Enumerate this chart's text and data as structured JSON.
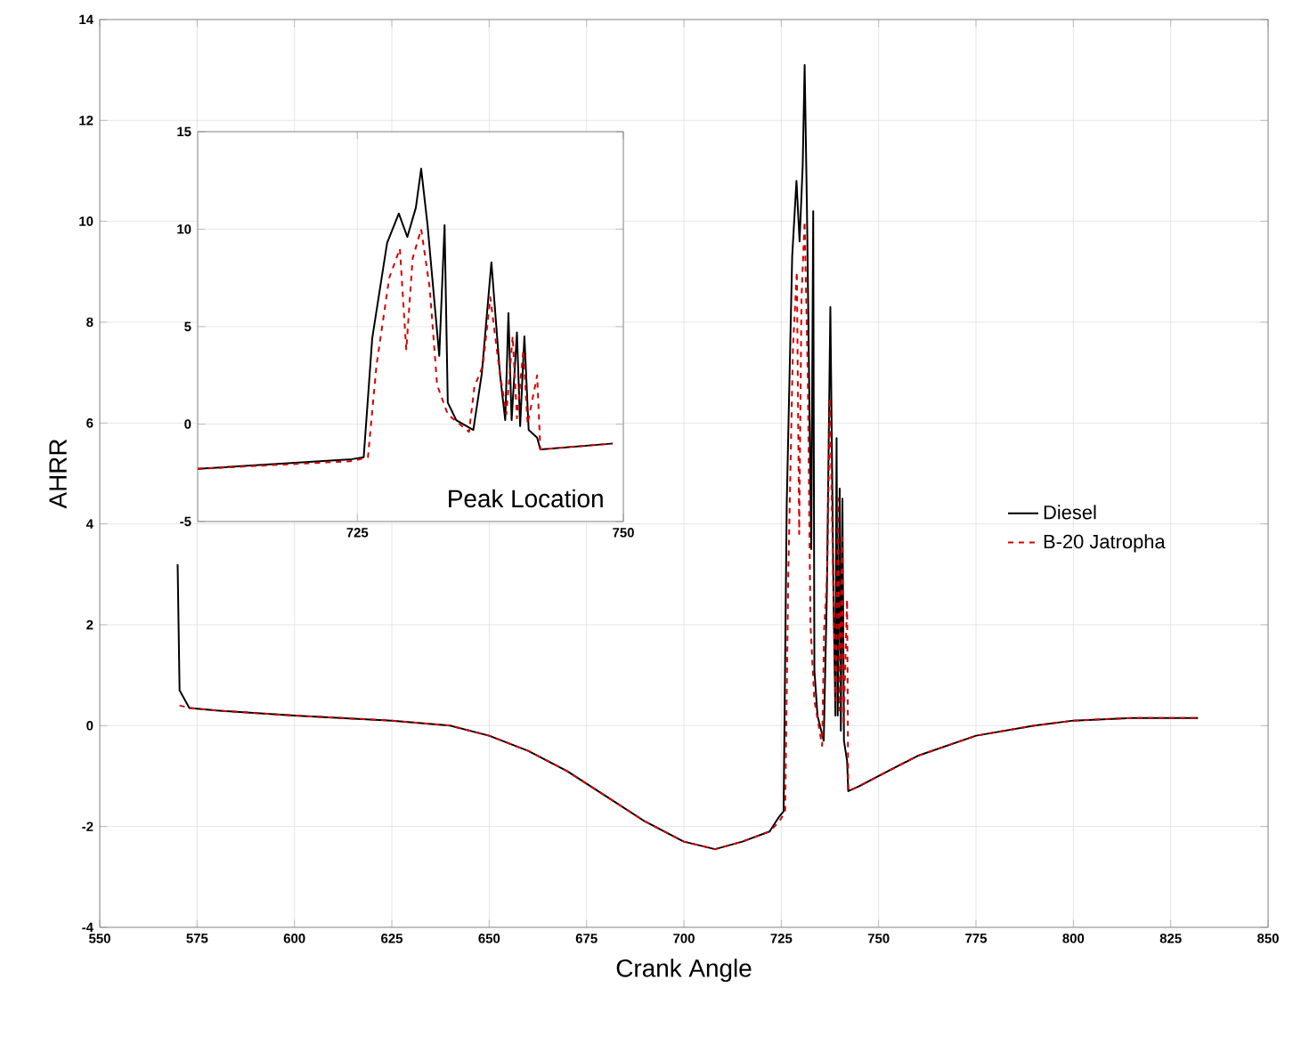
{
  "chart_data": [
    {
      "type": "line",
      "xlabel": "Crank Angle",
      "ylabel": "AHRR",
      "xlim": [
        550,
        850
      ],
      "ylim": [
        -4,
        14
      ],
      "xticks": [
        550,
        575,
        600,
        625,
        650,
        675,
        700,
        725,
        750,
        775,
        800,
        825,
        850
      ],
      "yticks": [
        -4,
        -2,
        0,
        2,
        4,
        6,
        8,
        10,
        12,
        14
      ],
      "grid": true,
      "legend": "right",
      "series": [
        {
          "name": "Diesel",
          "color": "#000000",
          "line_style": "solid",
          "x": [
            570,
            570.5,
            573,
            580,
            600,
            625,
            640,
            650,
            660,
            670,
            680,
            690,
            700,
            708,
            715,
            722,
            724.5,
            725.6,
            726.4,
            727.8,
            728.9,
            729.7,
            730.5,
            731.0,
            731.6,
            732.7,
            733.2,
            733.5,
            734.3,
            735.9,
            736.7,
            737.6,
            738.4,
            738.9,
            739.2,
            739.5,
            740.0,
            740.3,
            740.7,
            741.1,
            741.9,
            742.2,
            745,
            750,
            760,
            775,
            790,
            800,
            815,
            832
          ],
          "values": [
            3.2,
            0.7,
            0.35,
            0.3,
            0.2,
            0.1,
            0.0,
            -0.2,
            -0.5,
            -0.9,
            -1.4,
            -1.9,
            -2.3,
            -2.45,
            -2.3,
            -2.1,
            -1.8,
            -1.7,
            4.4,
            9.3,
            10.8,
            9.6,
            11.1,
            13.1,
            10.2,
            3.5,
            10.2,
            1.1,
            0.2,
            -0.3,
            2.6,
            8.3,
            2.6,
            0.2,
            5.7,
            0.2,
            4.7,
            -0.1,
            4.5,
            -0.3,
            -0.7,
            -1.3,
            -1.2,
            -1.0,
            -0.6,
            -0.2,
            0.0,
            0.1,
            0.15,
            0.15
          ]
        },
        {
          "name": "B-20 Jatropha",
          "color": "#d40000",
          "line_style": "dashed",
          "x": [
            570.5,
            573,
            580,
            600,
            625,
            640,
            650,
            660,
            670,
            680,
            690,
            700,
            708,
            715,
            722,
            724.5,
            726.0,
            726.8,
            728.0,
            729.0,
            729.6,
            730.2,
            731.0,
            731.8,
            732.5,
            733.5,
            735.5,
            736.0,
            736.8,
            737.5,
            738.3,
            739.0,
            739.6,
            740.0,
            740.6,
            741.0,
            741.9,
            742.2,
            745,
            750,
            760,
            775,
            790,
            800,
            815,
            832
          ],
          "values": [
            0.4,
            0.35,
            0.3,
            0.2,
            0.1,
            0.0,
            -0.2,
            -0.5,
            -0.9,
            -1.4,
            -1.9,
            -2.3,
            -2.45,
            -2.3,
            -2.1,
            -1.9,
            -1.7,
            3.0,
            7.5,
            9.0,
            3.8,
            8.5,
            10.0,
            7.0,
            2.0,
            0.5,
            -0.4,
            1.9,
            3.0,
            6.5,
            3.0,
            0.5,
            4.5,
            0.3,
            3.8,
            0.0,
            2.5,
            -1.3,
            -1.2,
            -1.0,
            -0.6,
            -0.2,
            0.0,
            0.1,
            0.15,
            0.15
          ]
        }
      ]
    },
    {
      "type": "line",
      "xlim": [
        710,
        750
      ],
      "ylim": [
        -5,
        15
      ],
      "xticks": [
        725,
        750
      ],
      "yticks": [
        -5,
        0,
        5,
        10,
        15
      ],
      "grid": true,
      "annotations": [
        "Peak Location"
      ],
      "series": [
        {
          "color": "#000000",
          "line_style": "solid",
          "x": [
            710,
            724.5,
            725.6,
            726.4,
            727.8,
            728.9,
            729.7,
            730.5,
            731.0,
            731.6,
            732.7,
            733.2,
            733.5,
            734.3,
            735.9,
            736.7,
            737.6,
            738.4,
            738.9,
            739.2,
            739.5,
            740.0,
            740.3,
            740.7,
            741.1,
            741.9,
            742.2,
            749.0
          ],
          "values": [
            -2.3,
            -1.8,
            -1.7,
            4.4,
            9.3,
            10.8,
            9.6,
            11.1,
            13.1,
            10.2,
            3.5,
            10.2,
            1.1,
            0.2,
            -0.3,
            2.6,
            8.3,
            2.6,
            0.2,
            5.7,
            0.2,
            4.7,
            -0.1,
            4.5,
            -0.3,
            -0.7,
            -1.3,
            -1.0
          ]
        },
        {
          "color": "#d40000",
          "line_style": "dashed",
          "x": [
            710,
            724.5,
            726.0,
            726.8,
            728.0,
            729.0,
            729.6,
            730.2,
            731.0,
            731.8,
            732.5,
            733.5,
            735.5,
            736.0,
            736.8,
            737.5,
            738.3,
            739.0,
            739.6,
            740.0,
            740.6,
            741.0,
            741.9,
            742.2,
            749.0
          ],
          "values": [
            -2.3,
            -1.9,
            -1.7,
            3.0,
            7.5,
            9.0,
            3.8,
            8.5,
            10.0,
            7.0,
            2.0,
            0.5,
            -0.4,
            1.9,
            3.0,
            6.5,
            3.0,
            0.5,
            4.5,
            0.3,
            3.8,
            0.0,
            2.5,
            -1.3,
            -1.0
          ]
        }
      ]
    }
  ]
}
